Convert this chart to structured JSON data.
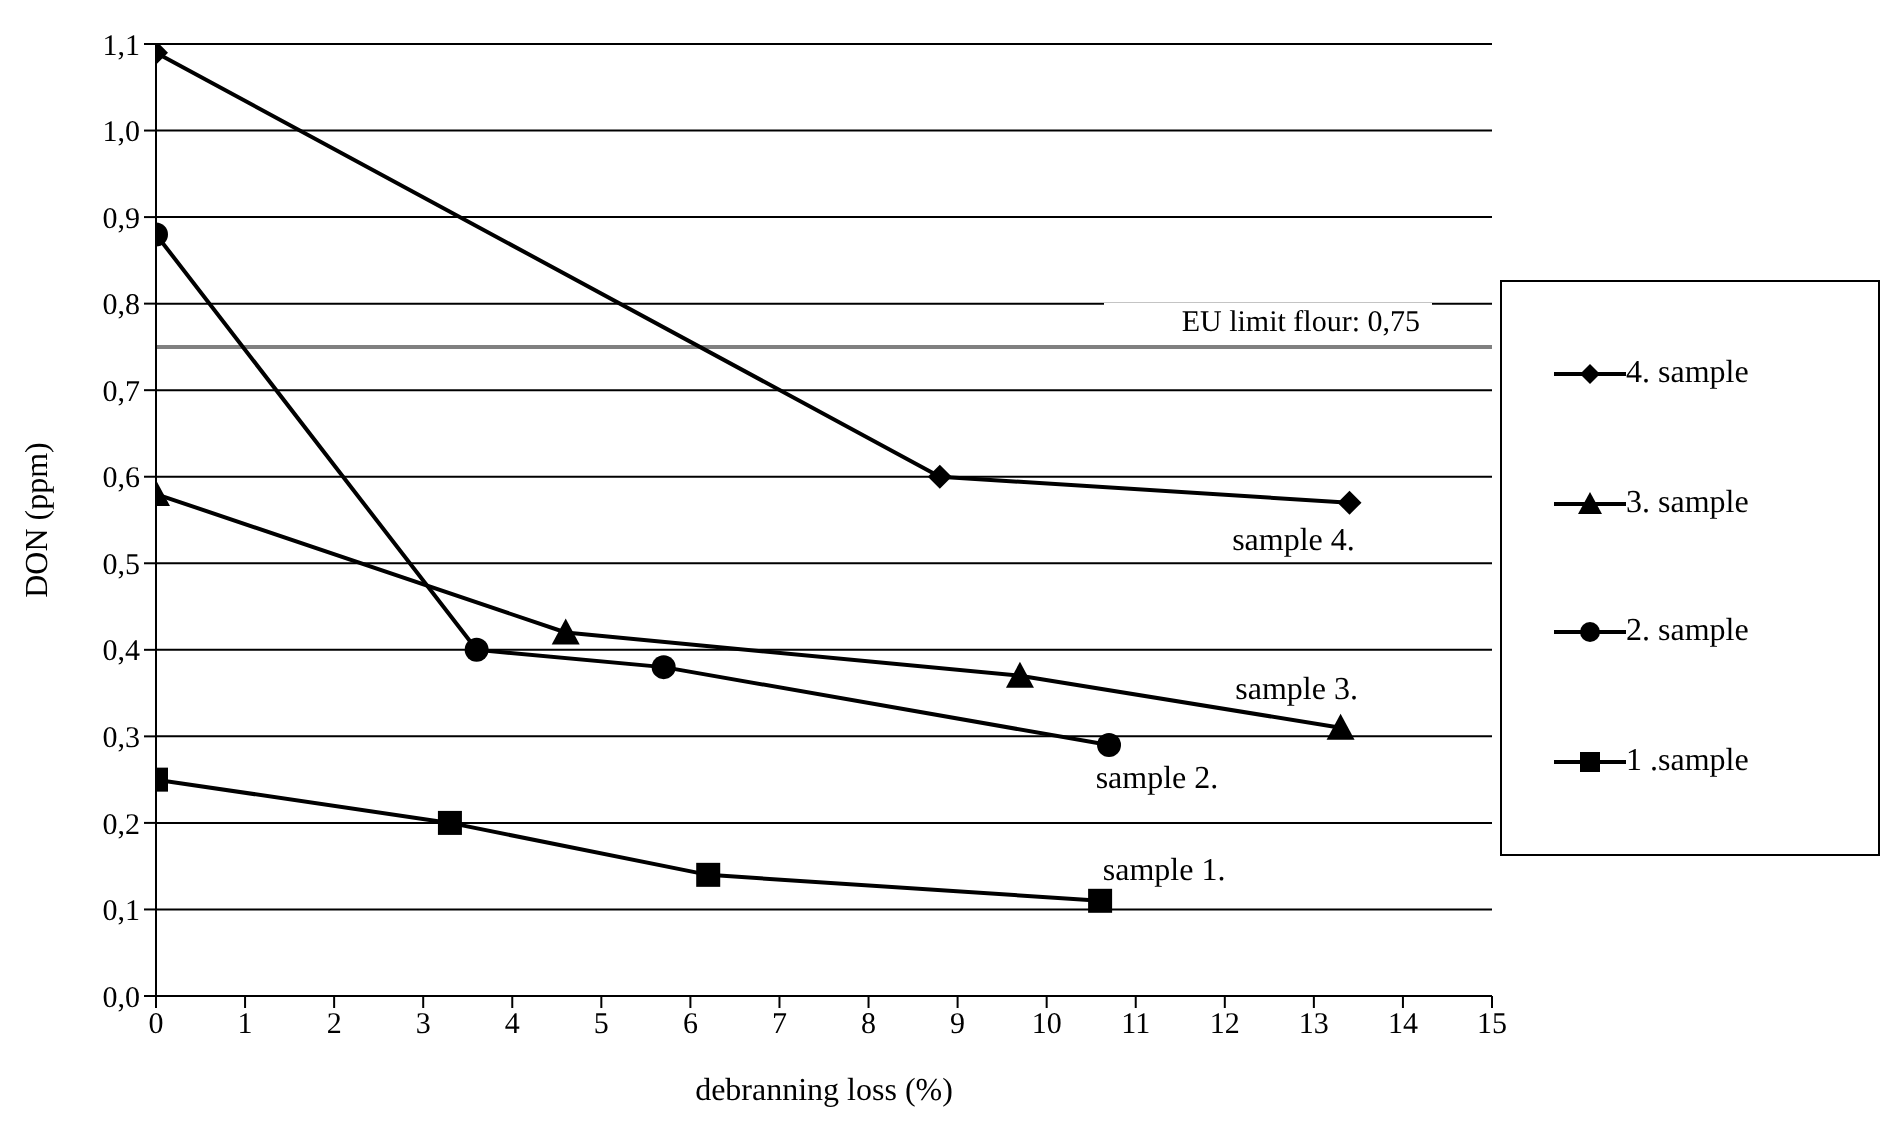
{
  "chart_data": {
    "type": "line",
    "xlabel": "debranning loss (%)",
    "ylabel": "DON (ppm)",
    "xlim": [
      0,
      15
    ],
    "xticks": [
      0,
      1,
      2,
      3,
      4,
      5,
      6,
      7,
      8,
      9,
      10,
      11,
      12,
      13,
      14,
      15
    ],
    "ylim": [
      0,
      1.1
    ],
    "yticks": [
      {
        "value": 0,
        "label": "0,0"
      },
      {
        "value": 0.1,
        "label": "0,1"
      },
      {
        "value": 0.2,
        "label": "0,2"
      },
      {
        "value": 0.3,
        "label": "0,3"
      },
      {
        "value": 0.4,
        "label": "0,4"
      },
      {
        "value": 0.5,
        "label": "0,5"
      },
      {
        "value": 0.6,
        "label": "0,6"
      },
      {
        "value": 0.7,
        "label": "0,7"
      },
      {
        "value": 0.8,
        "label": "0,8"
      },
      {
        "value": 0.9,
        "label": "0,9"
      },
      {
        "value": 1.0,
        "label": "1,0"
      },
      {
        "value": 1.1,
        "label": "1,1"
      }
    ],
    "grid": "y",
    "legend": "right",
    "line_style": "solid",
    "series": [
      {
        "name": "4. sample",
        "color": "#000000",
        "marker": "diamond",
        "x": [
          0,
          8.8,
          13.4
        ],
        "values": [
          1.09,
          0.6,
          0.57
        ]
      },
      {
        "name": "3. sample",
        "color": "#000000",
        "marker": "triangle",
        "x": [
          0,
          4.6,
          9.7,
          13.3
        ],
        "values": [
          0.58,
          0.42,
          0.37,
          0.31
        ]
      },
      {
        "name": "2. sample",
        "color": "#000000",
        "marker": "circle",
        "x": [
          0,
          3.6,
          5.7,
          10.7
        ],
        "values": [
          0.88,
          0.4,
          0.38,
          0.29
        ]
      },
      {
        "name": "1 .sample",
        "color": "#000000",
        "marker": "square",
        "x": [
          0,
          3.3,
          6.2,
          10.6
        ],
        "values": [
          0.25,
          0.2,
          0.14,
          0.11
        ]
      }
    ],
    "ref_lines": [
      {
        "axis": "y",
        "value": 0.75,
        "label": "EU limit flour: 0,75",
        "color": "#808080"
      }
    ],
    "annotations": [
      {
        "text": "sample 4.",
        "x": 13.4,
        "y": 0.57
      },
      {
        "text": "sample 3.",
        "x": 13.3,
        "y": 0.31
      },
      {
        "text": "sample 2.",
        "x": 10.7,
        "y": 0.29
      },
      {
        "text": "sample 1.",
        "x": 10.6,
        "y": 0.11
      }
    ]
  }
}
